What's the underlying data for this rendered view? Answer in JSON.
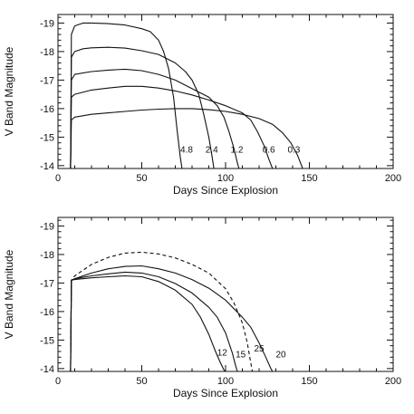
{
  "chart_data": [
    {
      "type": "line",
      "xlabel": "Days Since Explosion",
      "ylabel": "V Band Magnitude",
      "xlim": [
        0,
        200
      ],
      "ylim": [
        -19.3,
        -13.9
      ],
      "y_inverted": true,
      "xticks": [
        0,
        50,
        100,
        150,
        200
      ],
      "yticks": [
        -19,
        -18,
        -17,
        -16,
        -15,
        -14
      ],
      "grid": false,
      "series": [
        {
          "name": "4.8",
          "style": "solid",
          "x": [
            7.5,
            8,
            10,
            15,
            20,
            30,
            40,
            50,
            55,
            60,
            63,
            66,
            69,
            71,
            73,
            74
          ],
          "y": [
            -13.9,
            -18.6,
            -18.9,
            -19.0,
            -19.0,
            -18.98,
            -18.93,
            -18.8,
            -18.7,
            -18.4,
            -18.0,
            -17.4,
            -16.4,
            -15.3,
            -14.3,
            -13.9
          ]
        },
        {
          "name": "2.4",
          "style": "solid",
          "x": [
            7.5,
            8,
            10,
            15,
            20,
            30,
            40,
            50,
            60,
            70,
            76,
            80,
            84,
            87,
            90,
            92,
            93
          ],
          "y": [
            -13.9,
            -17.8,
            -18.0,
            -18.1,
            -18.13,
            -18.15,
            -18.12,
            -18.03,
            -17.9,
            -17.6,
            -17.3,
            -17.0,
            -16.5,
            -15.8,
            -15.0,
            -14.3,
            -13.9
          ]
        },
        {
          "name": "1.2",
          "style": "solid",
          "x": [
            7.5,
            8,
            10,
            20,
            30,
            40,
            50,
            60,
            70,
            80,
            90,
            95,
            99,
            102,
            105,
            107,
            108
          ],
          "y": [
            -13.9,
            -17.0,
            -17.2,
            -17.3,
            -17.35,
            -17.38,
            -17.33,
            -17.2,
            -17.0,
            -16.7,
            -16.4,
            -16.1,
            -15.7,
            -15.2,
            -14.6,
            -14.1,
            -13.9
          ]
        },
        {
          "name": "0.6",
          "style": "solid",
          "x": [
            7.5,
            8,
            10,
            20,
            30,
            40,
            50,
            60,
            70,
            80,
            90,
            100,
            110,
            115,
            119,
            123,
            126,
            128
          ],
          "y": [
            -13.9,
            -16.4,
            -16.5,
            -16.65,
            -16.72,
            -16.78,
            -16.78,
            -16.72,
            -16.62,
            -16.48,
            -16.3,
            -16.1,
            -15.85,
            -15.6,
            -15.2,
            -14.7,
            -14.2,
            -13.9
          ]
        },
        {
          "name": "0.3",
          "style": "solid",
          "x": [
            7.5,
            8,
            10,
            20,
            30,
            40,
            50,
            60,
            70,
            80,
            90,
            100,
            110,
            120,
            128,
            134,
            139,
            143,
            146
          ],
          "y": [
            -13.9,
            -15.6,
            -15.7,
            -15.8,
            -15.85,
            -15.9,
            -15.95,
            -15.98,
            -16.0,
            -16.0,
            -15.96,
            -15.9,
            -15.8,
            -15.65,
            -15.45,
            -15.15,
            -14.8,
            -14.35,
            -13.9
          ]
        }
      ],
      "labels": [
        {
          "text": "4.8",
          "x": 73,
          "y": -14.45
        },
        {
          "text": "2.4",
          "x": 88,
          "y": -14.45
        },
        {
          "text": "1.2",
          "x": 103,
          "y": -14.45
        },
        {
          "text": "0.6",
          "x": 122,
          "y": -14.45
        },
        {
          "text": "0.3",
          "x": 137,
          "y": -14.45
        }
      ]
    },
    {
      "type": "line",
      "xlabel": "Days Since Explosion",
      "ylabel": "V Band Magnitude",
      "xlim": [
        0,
        200
      ],
      "ylim": [
        -19.3,
        -13.9
      ],
      "y_inverted": true,
      "xticks": [
        0,
        50,
        100,
        150,
        200
      ],
      "yticks": [
        -19,
        -18,
        -17,
        -16,
        -15,
        -14
      ],
      "grid": false,
      "series": [
        {
          "name": "12",
          "style": "solid",
          "x": [
            7.5,
            8,
            10,
            20,
            30,
            40,
            50,
            60,
            70,
            80,
            85,
            90,
            94,
            97,
            99,
            100
          ],
          "y": [
            -13.9,
            -17.1,
            -17.12,
            -17.18,
            -17.22,
            -17.25,
            -17.22,
            -17.05,
            -16.75,
            -16.25,
            -15.8,
            -15.2,
            -14.6,
            -14.2,
            -13.95,
            -13.9
          ]
        },
        {
          "name": "15",
          "style": "solid",
          "x": [
            7.5,
            8,
            10,
            20,
            30,
            40,
            50,
            60,
            70,
            80,
            90,
            95,
            100,
            104,
            106,
            107
          ],
          "y": [
            -13.9,
            -17.1,
            -17.15,
            -17.25,
            -17.32,
            -17.38,
            -17.35,
            -17.22,
            -16.98,
            -16.65,
            -16.15,
            -15.8,
            -15.25,
            -14.55,
            -14.1,
            -13.9
          ]
        },
        {
          "name": "25",
          "style": "dashed",
          "x": [
            7.5,
            8,
            10,
            15,
            20,
            30,
            40,
            50,
            60,
            70,
            80,
            90,
            100,
            105,
            110,
            113,
            115,
            116
          ],
          "y": [
            -13.9,
            -17.1,
            -17.25,
            -17.45,
            -17.65,
            -17.9,
            -18.05,
            -18.08,
            -18.02,
            -17.88,
            -17.65,
            -17.35,
            -16.8,
            -16.3,
            -15.6,
            -14.9,
            -14.2,
            -13.9
          ]
        },
        {
          "name": "20",
          "style": "solid",
          "x": [
            7.5,
            8,
            10,
            20,
            30,
            40,
            50,
            60,
            70,
            80,
            90,
            100,
            110,
            115,
            120,
            124,
            127,
            128
          ],
          "y": [
            -13.9,
            -17.1,
            -17.15,
            -17.35,
            -17.5,
            -17.58,
            -17.6,
            -17.5,
            -17.35,
            -17.12,
            -16.82,
            -16.4,
            -15.8,
            -15.45,
            -14.9,
            -14.4,
            -14.0,
            -13.9
          ]
        }
      ],
      "labels": [
        {
          "text": "12",
          "x": 95,
          "y": -14.45
        },
        {
          "text": "15",
          "x": 106,
          "y": -14.4
        },
        {
          "text": "25",
          "x": 117,
          "y": -14.6
        },
        {
          "text": "20",
          "x": 130,
          "y": -14.4
        }
      ]
    }
  ]
}
